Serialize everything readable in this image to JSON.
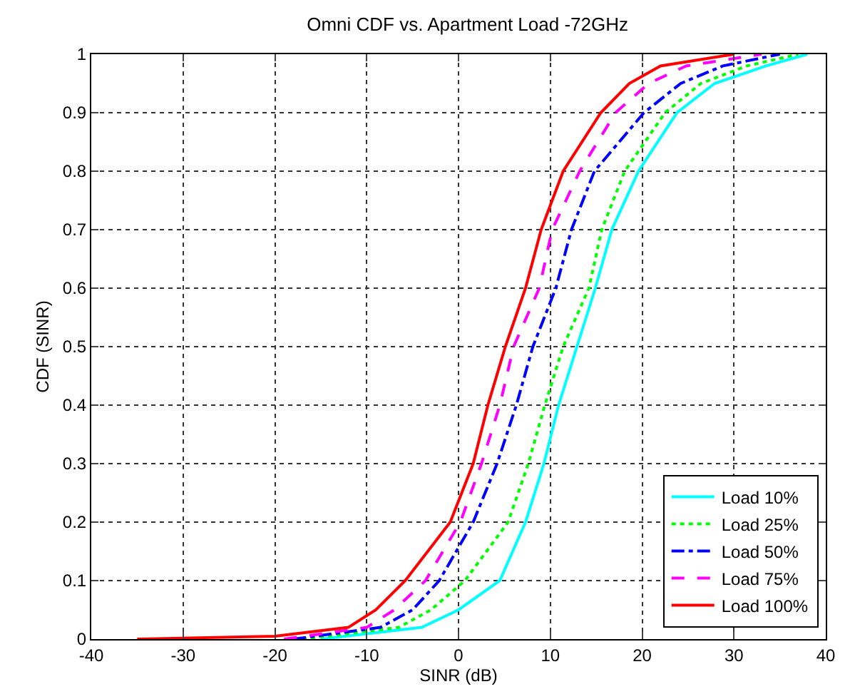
{
  "chart_data": {
    "type": "line",
    "title": "Omni CDF vs. Apartment Load -72GHz",
    "xlabel": "SINR (dB)",
    "ylabel": "CDF (SINR)",
    "xlim": [
      -40,
      40
    ],
    "xticks": [
      -40,
      -30,
      -20,
      -10,
      0,
      10,
      20,
      30,
      40
    ],
    "ylim": [
      0,
      1
    ],
    "yticks": [
      0,
      0.1,
      0.2,
      0.3,
      0.4,
      0.5,
      0.6,
      0.7,
      0.8,
      0.9,
      1
    ],
    "grid": true,
    "legend": "bottom right",
    "marker": "none",
    "series": [
      {
        "name": "Load 10%",
        "color": "#00ffff",
        "line_style": "solid",
        "x": [
          -15,
          -4,
          0,
          4.5,
          7.3,
          9.3,
          10.9,
          12.9,
          14.9,
          16.7,
          19.6,
          23.8,
          27.9,
          33.5,
          38
        ],
        "values": [
          0,
          0.02,
          0.05,
          0.1,
          0.2,
          0.3,
          0.4,
          0.5,
          0.6,
          0.7,
          0.8,
          0.9,
          0.95,
          0.98,
          1
        ]
      },
      {
        "name": "Load 25%",
        "color": "#00ff00",
        "line_style": "dotted",
        "x": [
          -17,
          -6.5,
          -3,
          0.7,
          5.4,
          7.6,
          9.4,
          11.4,
          14.2,
          15.6,
          18.1,
          22.5,
          26.4,
          31.4,
          37
        ],
        "values": [
          0,
          0.02,
          0.05,
          0.1,
          0.2,
          0.3,
          0.4,
          0.5,
          0.6,
          0.7,
          0.8,
          0.9,
          0.95,
          0.98,
          1
        ]
      },
      {
        "name": "Load 50%",
        "color": "#0000ff",
        "line_style": "dashdot",
        "x": [
          -18,
          -8.5,
          -5,
          -2.1,
          1.6,
          4.2,
          6.3,
          8.1,
          10.6,
          12.3,
          14.8,
          20.2,
          24.2,
          28.8,
          35
        ],
        "values": [
          0,
          0.02,
          0.05,
          0.1,
          0.2,
          0.3,
          0.4,
          0.5,
          0.6,
          0.7,
          0.8,
          0.9,
          0.95,
          0.98,
          1
        ]
      },
      {
        "name": "Load 75%",
        "color": "#ff00ff",
        "line_style": "dashed",
        "x": [
          -19,
          -10,
          -7,
          -3.6,
          0.2,
          2.5,
          4.5,
          6,
          8.8,
          10.2,
          13.2,
          17.1,
          20.7,
          24.8,
          33
        ],
        "values": [
          0,
          0.02,
          0.05,
          0.1,
          0.2,
          0.3,
          0.4,
          0.5,
          0.6,
          0.7,
          0.8,
          0.9,
          0.95,
          0.98,
          1
        ]
      },
      {
        "name": "Load 100%",
        "color": "#ff0000",
        "line_style": "solid",
        "x": [
          -35,
          -20,
          -12,
          -9,
          -5.8,
          -0.9,
          1.6,
          3.2,
          5.1,
          7.3,
          9,
          11.4,
          15.5,
          18.6,
          22,
          30
        ],
        "values": [
          0,
          0.005,
          0.02,
          0.05,
          0.1,
          0.2,
          0.3,
          0.4,
          0.5,
          0.6,
          0.7,
          0.8,
          0.9,
          0.95,
          0.98,
          1
        ]
      }
    ]
  }
}
